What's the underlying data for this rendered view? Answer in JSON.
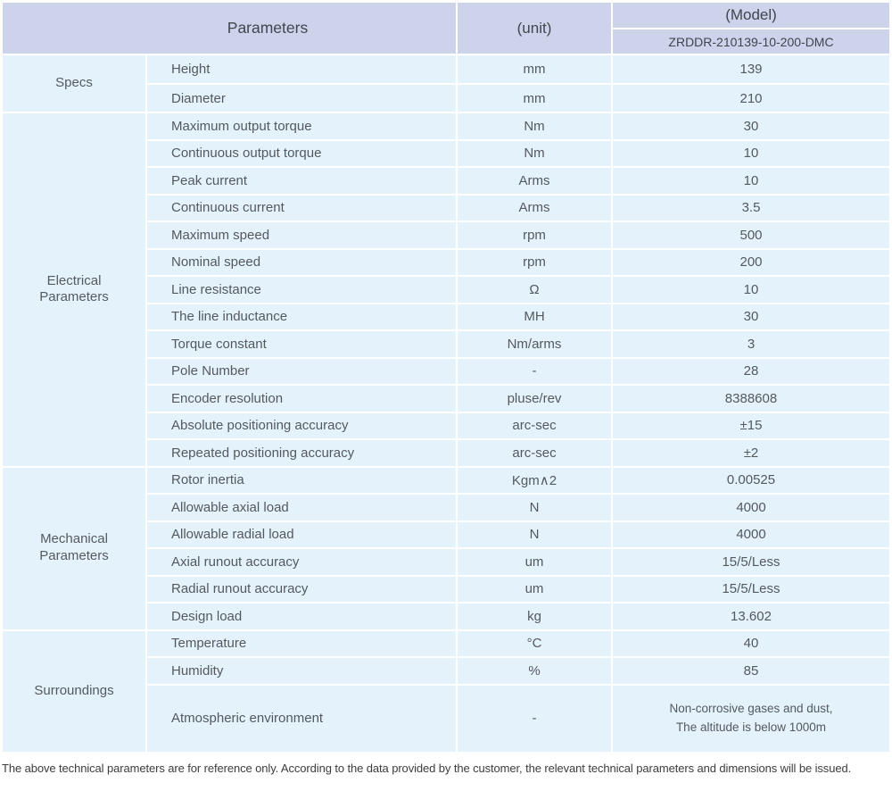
{
  "colors": {
    "header_bg": "#ccd3ea",
    "cell_bg": "#e4f2fb",
    "separator": "#ffffff",
    "text": "#54595e"
  },
  "table": {
    "header": {
      "parameters_label": "Parameters",
      "unit_label": "(unit)",
      "model_label": "(Model)",
      "model_value": "ZRDDR-210139-10-200-DMC"
    },
    "sections": [
      {
        "category": "Specs",
        "rows": [
          {
            "name": "Height",
            "unit": "mm",
            "value": "139"
          },
          {
            "name": "Diameter",
            "unit": "mm",
            "value": "210"
          }
        ]
      },
      {
        "category": "Electrical\nParameters",
        "rows": [
          {
            "name": "Maximum output torque",
            "unit": "Nm",
            "value": "30"
          },
          {
            "name": "Continuous output torque",
            "unit": "Nm",
            "value": "10"
          },
          {
            "name": "Peak current",
            "unit": "Arms",
            "value": "10"
          },
          {
            "name": "Continuous current",
            "unit": "Arms",
            "value": "3.5"
          },
          {
            "name": "Maximum speed",
            "unit": "rpm",
            "value": "500"
          },
          {
            "name": "Nominal speed",
            "unit": "rpm",
            "value": "200"
          },
          {
            "name": "Line resistance",
            "unit": "Ω",
            "value": "10"
          },
          {
            "name": "The line inductance",
            "unit": "MH",
            "value": "30"
          },
          {
            "name": "Torque constant",
            "unit": "Nm/arms",
            "value": "3"
          },
          {
            "name": "Pole Number",
            "unit": "-",
            "value": "28"
          },
          {
            "name": "Encoder resolution",
            "unit": "pluse/rev",
            "value": "8388608"
          },
          {
            "name": "Absolute positioning accuracy",
            "unit": "arc-sec",
            "value": "±15"
          },
          {
            "name": "Repeated positioning accuracy",
            "unit": "arc-sec",
            "value": "±2"
          }
        ]
      },
      {
        "category": "Mechanical\nParameters",
        "rows": [
          {
            "name": "Rotor inertia",
            "unit": "Kgm∧2",
            "value": "0.00525"
          },
          {
            "name": "Allowable axial load",
            "unit": "N",
            "value": "4000"
          },
          {
            "name": "Allowable radial load",
            "unit": "N",
            "value": "4000"
          },
          {
            "name": "Axial runout accuracy",
            "unit": "um",
            "value": "15/5/Less"
          },
          {
            "name": "Radial runout accuracy",
            "unit": "um",
            "value": "15/5/Less"
          },
          {
            "name": "Design load",
            "unit": "kg",
            "value": "13.602"
          }
        ]
      },
      {
        "category": "Surroundings",
        "rows": [
          {
            "name": "Temperature",
            "unit": "°C",
            "value": "40"
          },
          {
            "name": "Humidity",
            "unit": "%",
            "value": "85"
          },
          {
            "name": "Atmospheric environment",
            "unit": "-",
            "value": "Non-corrosive gases and dust,\nThe altitude is below 1000m"
          }
        ]
      }
    ]
  },
  "footer": {
    "note": "The above technical parameters are for reference only. According to the data provided by the customer, the relevant technical parameters and dimensions will be issued."
  }
}
